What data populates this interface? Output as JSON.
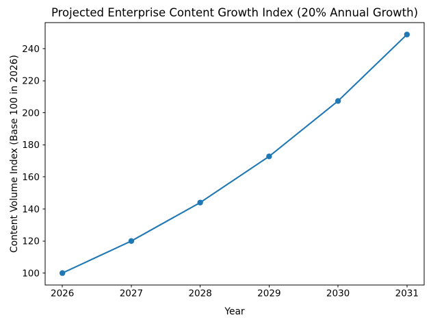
{
  "chart_data": {
    "type": "line",
    "title": "Projected Enterprise Content Growth Index (20% Annual Growth)",
    "xlabel": "Year",
    "ylabel": "Content Volume Index (Base 100 in 2026)",
    "x": [
      2026,
      2027,
      2028,
      2029,
      2030,
      2031
    ],
    "y": [
      100,
      120,
      144,
      172.8,
      207.36,
      248.83
    ],
    "xticks": [
      2026,
      2027,
      2028,
      2029,
      2030,
      2031
    ],
    "xtick_labels": [
      "2026",
      "2027",
      "2028",
      "2029",
      "2030",
      "2031"
    ],
    "yticks": [
      100,
      120,
      140,
      160,
      180,
      200,
      220,
      240
    ],
    "ytick_labels": [
      "100",
      "120",
      "140",
      "160",
      "180",
      "200",
      "220",
      "240"
    ],
    "xlim": [
      2025.75,
      2031.25
    ],
    "ylim": [
      92.56,
      256.27
    ],
    "grid": false,
    "legend": false,
    "line_color": "#1f77b4",
    "marker": "circle",
    "marker_color": "#1f77b4",
    "spine_color": "#000000",
    "background_color": "#ffffff"
  }
}
